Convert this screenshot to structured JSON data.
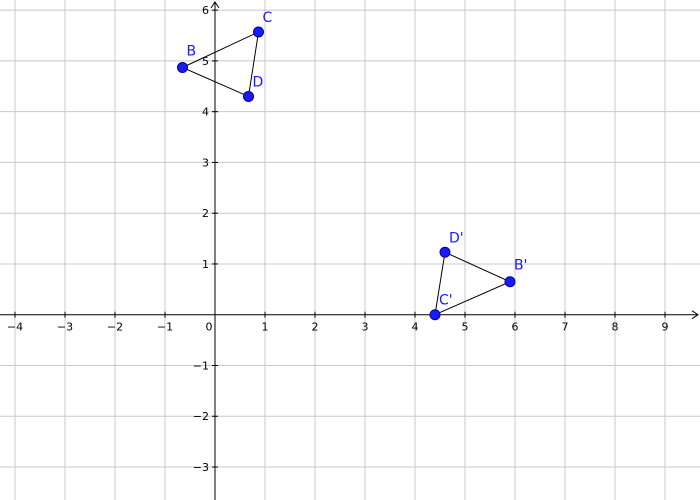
{
  "plot": {
    "x_range": [
      -4.3,
      9.7
    ],
    "y_range": [
      -3.65,
      6.2
    ],
    "grid": true,
    "x_ticks": [
      -4,
      -3,
      -2,
      -1,
      0,
      1,
      2,
      3,
      4,
      5,
      6,
      7,
      8,
      9
    ],
    "y_ticks": [
      -3,
      -2,
      -1,
      1,
      2,
      3,
      4,
      5,
      6
    ],
    "x_tick_labels": [
      "−4",
      "−3",
      "−2",
      "−1",
      "0",
      "1",
      "2",
      "3",
      "4",
      "5",
      "6",
      "7",
      "8",
      "9"
    ],
    "y_tick_labels": [
      "−3",
      "−2",
      "−1",
      "1",
      "2",
      "3",
      "4",
      "5",
      "6"
    ]
  },
  "triangles": [
    {
      "points": [
        {
          "label": "B",
          "x": -0.65,
          "y": 4.87
        },
        {
          "label": "C",
          "x": 0.87,
          "y": 5.57
        },
        {
          "label": "D",
          "x": 0.67,
          "y": 4.3
        }
      ]
    },
    {
      "points": [
        {
          "label": "B'",
          "x": 5.9,
          "y": 0.65
        },
        {
          "label": "C'",
          "x": 4.4,
          "y": 0.0
        },
        {
          "label": "D'",
          "x": 4.6,
          "y": 1.23
        }
      ]
    }
  ],
  "colors": {
    "point_fill": "#1a1aff",
    "label": "#1a1aff",
    "grid": "#c8c8c8",
    "axis": "#000000"
  }
}
